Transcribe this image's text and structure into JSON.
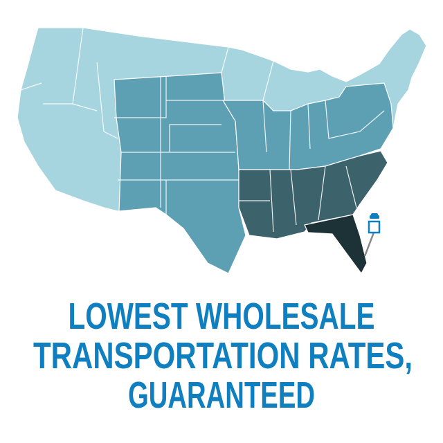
{
  "headline": {
    "lines": [
      "LOWEST WHOLESALE",
      "TRANSPORTATION RATES,",
      "GUARANTEED"
    ],
    "color": "#0f7fc0"
  },
  "map": {
    "region": "United States",
    "shade_colors": {
      "lightest": "#a7d5df",
      "medium": "#5d9fb3",
      "dark": "#3c626b",
      "darkest": "#1d3236",
      "border": "#ffffff"
    },
    "marker": {
      "icon": "car-pin-icon",
      "color": "#0f7fc0",
      "location": "Florida"
    }
  }
}
